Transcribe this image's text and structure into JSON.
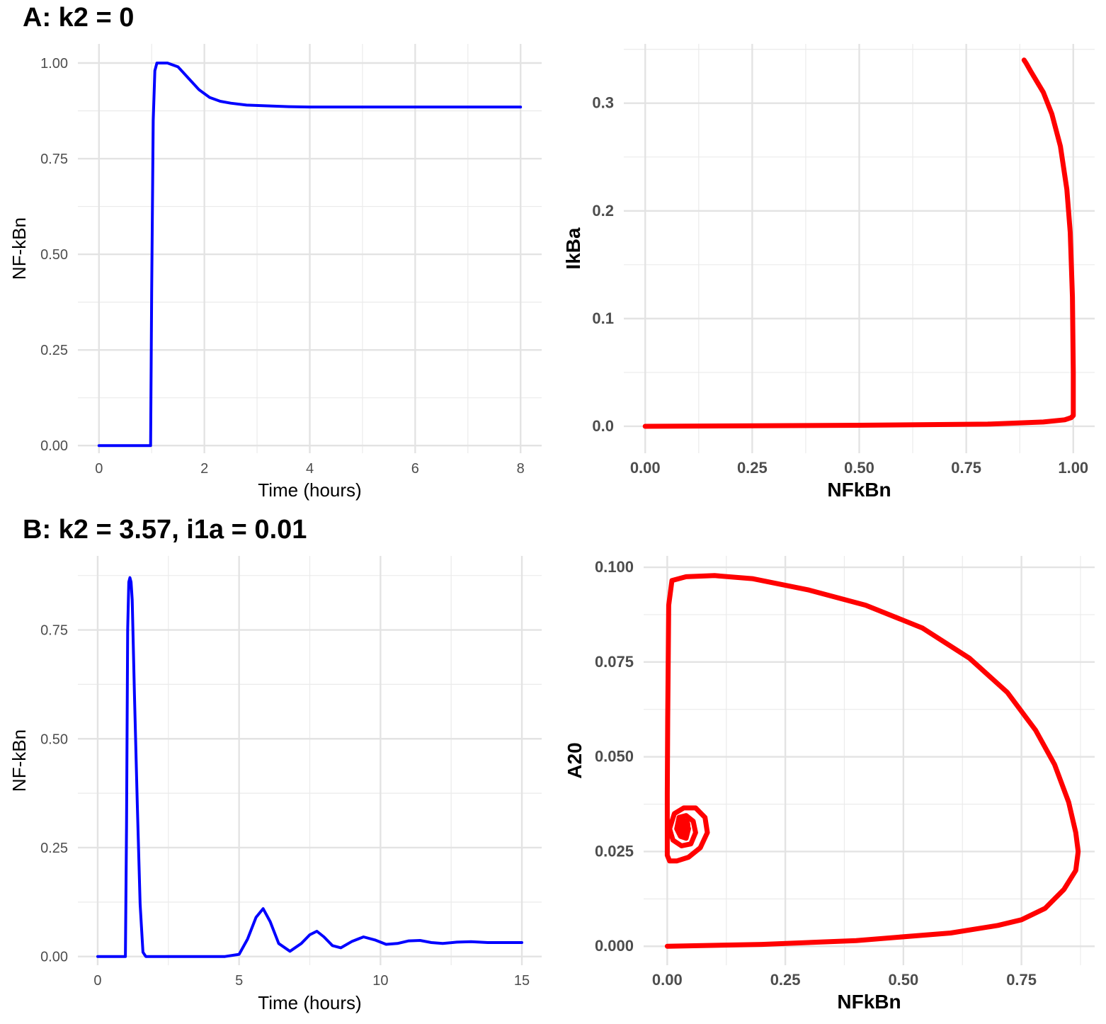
{
  "titles": {
    "a": "A: k2 = 0",
    "b": "B: k2 = 3.57, i1a = 0.01"
  },
  "colors": {
    "time_series": "#0000ff",
    "phase": "#ff0000",
    "grid": "#ebebeb"
  },
  "chart_data": [
    {
      "id": "a_time",
      "type": "line",
      "xlabel": "Time (hours)",
      "ylabel": "NF-kBn",
      "xlim": [
        -0.4,
        8.4
      ],
      "ylim": [
        -0.02,
        1.05
      ],
      "xticks": [
        0,
        2,
        4,
        6,
        8
      ],
      "xtick_labels": [
        "0",
        "2",
        "4",
        "6",
        "8"
      ],
      "yticks": [
        0,
        0.25,
        0.5,
        0.75,
        1.0
      ],
      "ytick_labels": [
        "0.00",
        "0.25",
        "0.50",
        "0.75",
        "1.00"
      ],
      "grid": true,
      "series": [
        {
          "color": "#0000ff",
          "x": [
            0,
            0.5,
            0.98,
            1.0,
            1.03,
            1.06,
            1.1,
            1.3,
            1.5,
            1.7,
            1.9,
            2.1,
            2.3,
            2.5,
            2.8,
            3.2,
            3.6,
            4,
            5,
            6,
            7,
            8
          ],
          "y": [
            0,
            0,
            0,
            0.4,
            0.85,
            0.98,
            1.0,
            1.0,
            0.99,
            0.96,
            0.93,
            0.91,
            0.9,
            0.895,
            0.89,
            0.888,
            0.886,
            0.885,
            0.885,
            0.885,
            0.885,
            0.885
          ]
        }
      ]
    },
    {
      "id": "a_phase",
      "type": "line",
      "xlabel": "NFkBn",
      "ylabel": "IkBa",
      "xlim": [
        -0.05,
        1.05
      ],
      "ylim": [
        -0.025,
        0.355
      ],
      "xticks": [
        0,
        0.25,
        0.5,
        0.75,
        1.0
      ],
      "xtick_labels": [
        "0.00",
        "0.25",
        "0.50",
        "0.75",
        "1.00"
      ],
      "yticks": [
        0,
        0.1,
        0.2,
        0.3
      ],
      "ytick_labels": [
        "0.0",
        "0.1",
        "0.2",
        "0.3"
      ],
      "grid": true,
      "series": [
        {
          "color": "#ff0000",
          "x": [
            0,
            0.5,
            0.8,
            0.93,
            0.98,
            0.995,
            1.0,
            1.0,
            0.998,
            0.993,
            0.985,
            0.97,
            0.95,
            0.93,
            0.915,
            0.9,
            0.89,
            0.885
          ],
          "y": [
            0,
            0.001,
            0.002,
            0.004,
            0.006,
            0.008,
            0.01,
            0.05,
            0.12,
            0.18,
            0.22,
            0.26,
            0.29,
            0.31,
            0.32,
            0.33,
            0.337,
            0.34
          ]
        }
      ]
    },
    {
      "id": "b_time",
      "type": "line",
      "xlabel": "Time (hours)",
      "ylabel": "NF-kBn",
      "xlim": [
        -0.7,
        15.7
      ],
      "ylim": [
        -0.02,
        0.92
      ],
      "xticks": [
        0,
        5,
        10,
        15
      ],
      "xtick_labels": [
        "0",
        "5",
        "10",
        "15"
      ],
      "yticks": [
        0,
        0.25,
        0.5,
        0.75
      ],
      "ytick_labels": [
        "0.00",
        "0.25",
        "0.50",
        "0.75"
      ],
      "grid": true,
      "series": [
        {
          "color": "#0000ff",
          "x": [
            0,
            0.98,
            1.02,
            1.06,
            1.1,
            1.14,
            1.18,
            1.22,
            1.3,
            1.4,
            1.5,
            1.6,
            1.7,
            3,
            4.5,
            5.0,
            5.3,
            5.6,
            5.85,
            6.1,
            6.4,
            6.8,
            7.2,
            7.5,
            7.75,
            8.0,
            8.3,
            8.6,
            9.0,
            9.4,
            9.8,
            10.2,
            10.6,
            11.0,
            11.4,
            11.8,
            12.2,
            12.7,
            13.2,
            13.8,
            14.4,
            15
          ],
          "y": [
            0,
            0,
            0.3,
            0.75,
            0.86,
            0.87,
            0.86,
            0.82,
            0.6,
            0.35,
            0.12,
            0.01,
            0,
            0,
            0,
            0.005,
            0.04,
            0.09,
            0.11,
            0.08,
            0.03,
            0.012,
            0.03,
            0.05,
            0.058,
            0.045,
            0.025,
            0.02,
            0.035,
            0.045,
            0.038,
            0.028,
            0.03,
            0.036,
            0.037,
            0.032,
            0.03,
            0.033,
            0.034,
            0.032,
            0.032,
            0.032
          ]
        }
      ]
    },
    {
      "id": "b_phase",
      "type": "line",
      "xlabel": "NFkBn",
      "ylabel": "A20",
      "xlim": [
        -0.05,
        0.905
      ],
      "ylim": [
        -0.005,
        0.103
      ],
      "xticks": [
        0,
        0.25,
        0.5,
        0.75
      ],
      "xtick_labels": [
        "0.00",
        "0.25",
        "0.50",
        "0.75"
      ],
      "yticks": [
        0,
        0.025,
        0.05,
        0.075,
        0.1
      ],
      "ytick_labels": [
        "0.000",
        "0.025",
        "0.050",
        "0.075",
        "0.100"
      ],
      "grid": true,
      "series": [
        {
          "color": "#ff0000",
          "x": [
            0,
            0.2,
            0.4,
            0.6,
            0.7,
            0.75,
            0.8,
            0.84,
            0.865,
            0.87,
            0.865,
            0.85,
            0.82,
            0.78,
            0.72,
            0.64,
            0.54,
            0.42,
            0.3,
            0.18,
            0.1,
            0.04,
            0.01,
            0.003,
            0.001,
            0.0,
            0.0,
            0.0,
            0.0,
            0.005,
            0.02,
            0.045,
            0.07,
            0.085,
            0.08,
            0.06,
            0.035,
            0.015,
            0.005,
            0.012,
            0.03,
            0.05,
            0.06,
            0.055,
            0.04,
            0.025,
            0.02,
            0.028,
            0.04,
            0.045,
            0.04,
            0.032,
            0.03,
            0.035,
            0.038,
            0.034
          ],
          "y": [
            0,
            0.0005,
            0.0015,
            0.0035,
            0.0055,
            0.007,
            0.01,
            0.015,
            0.02,
            0.025,
            0.03,
            0.038,
            0.048,
            0.057,
            0.067,
            0.076,
            0.084,
            0.09,
            0.094,
            0.097,
            0.0978,
            0.0975,
            0.0965,
            0.09,
            0.06,
            0.04,
            0.03,
            0.025,
            0.024,
            0.0225,
            0.0225,
            0.0235,
            0.026,
            0.03,
            0.034,
            0.0365,
            0.0365,
            0.035,
            0.031,
            0.028,
            0.0265,
            0.027,
            0.03,
            0.033,
            0.0345,
            0.034,
            0.031,
            0.029,
            0.0285,
            0.031,
            0.033,
            0.033,
            0.031,
            0.03,
            0.031,
            0.032
          ]
        }
      ]
    }
  ]
}
